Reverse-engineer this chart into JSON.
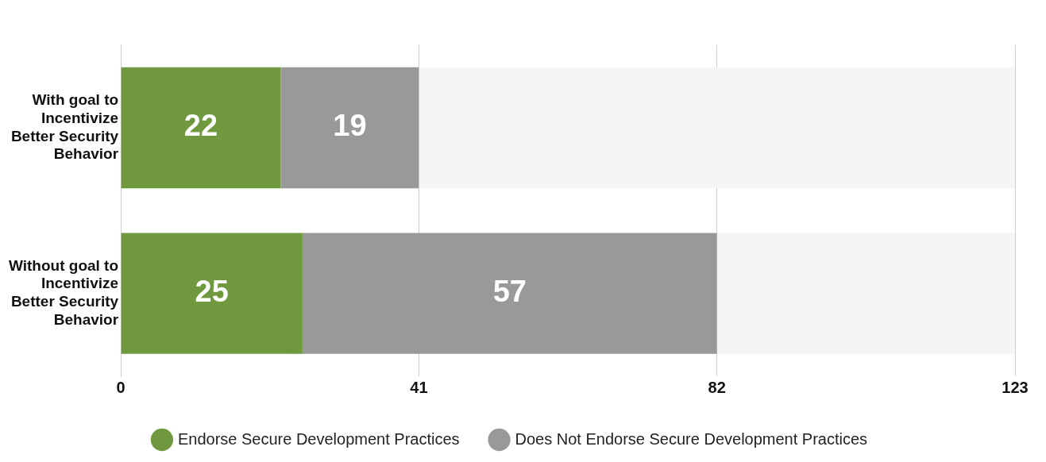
{
  "chart_data": {
    "type": "bar",
    "orientation": "horizontal",
    "stacked": true,
    "categories": [
      "With goal to Incentivize Better Security Behavior",
      "Without goal to Incentivize Better Security Behavior"
    ],
    "series": [
      {
        "name": "Endorse Secure Development Practices",
        "color": "#70993f",
        "values": [
          22,
          25
        ],
        "value_labels": [
          "22",
          "25"
        ]
      },
      {
        "name": "Does Not Endorse Secure Development Practices",
        "color": "#999999",
        "values": [
          19,
          57
        ],
        "value_labels": [
          "19",
          "57"
        ]
      },
      {
        "color": "#f5f5f5",
        "values": [
          82,
          41
        ]
      }
    ],
    "xlim": [
      0,
      123
    ],
    "xticks": [
      0,
      41,
      82,
      123
    ],
    "grid": "x",
    "legend": "bottom",
    "marker": "circle"
  }
}
